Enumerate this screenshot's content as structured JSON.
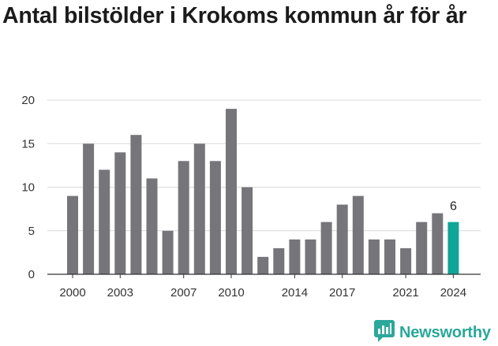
{
  "title": "Antal bilstölder i Krokoms kommun år för år",
  "brand": {
    "name": "Newsworthy",
    "color": "#2aa89a",
    "icon": "newsworthy-logo-icon"
  },
  "colors": {
    "bar": "#76757a",
    "highlight": "#10a599",
    "grid": "#d9d9d9",
    "axis": "#333333"
  },
  "chart_data": {
    "type": "bar",
    "title": "Antal bilstölder i Krokoms kommun år för år",
    "xlabel": "",
    "ylabel": "",
    "ylim": [
      0,
      20
    ],
    "yticks": [
      0,
      5,
      10,
      15,
      20
    ],
    "grid": true,
    "categories": [
      2000,
      2001,
      2002,
      2003,
      2004,
      2005,
      2006,
      2007,
      2008,
      2009,
      2010,
      2011,
      2012,
      2013,
      2014,
      2015,
      2016,
      2017,
      2018,
      2019,
      2020,
      2021,
      2022,
      2023,
      2024
    ],
    "values": [
      9,
      15,
      12,
      14,
      16,
      11,
      5,
      13,
      15,
      13,
      19,
      10,
      2,
      3,
      4,
      4,
      6,
      8,
      9,
      4,
      4,
      3,
      6,
      7,
      6
    ],
    "xticks": [
      2000,
      2003,
      2007,
      2010,
      2014,
      2017,
      2021,
      2024
    ],
    "highlight": {
      "category": 2024,
      "label": "6"
    }
  }
}
